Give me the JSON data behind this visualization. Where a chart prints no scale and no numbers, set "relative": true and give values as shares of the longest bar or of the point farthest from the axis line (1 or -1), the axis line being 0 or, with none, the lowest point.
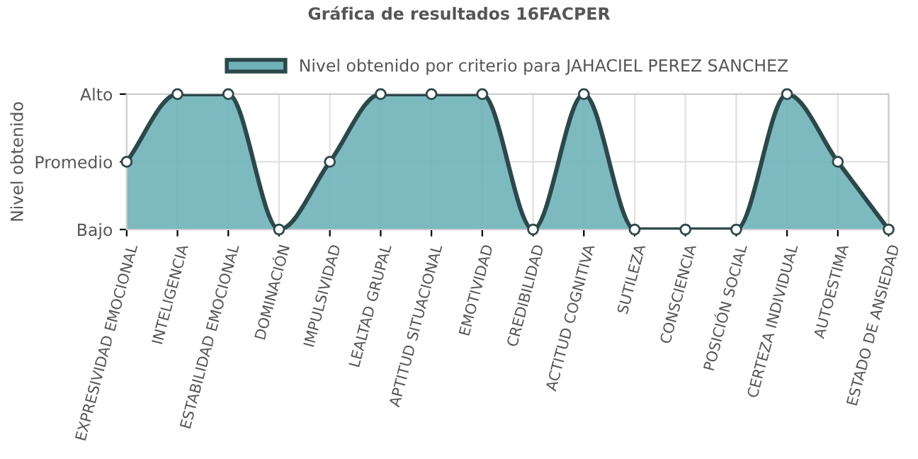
{
  "chart_data": {
    "type": "area",
    "title": "Gráfica de resultados 16FACPER",
    "ylabel": "Nivel obtenido",
    "categories": [
      "EXPRESIVIDAD EMOCIONAL",
      "INTELIGENCIA",
      "ESTABILIDAD EMOCIONAL",
      "DOMINACIÓN",
      "IMPULSIVIDAD",
      "LEALTAD GRUPAL",
      "APTITUD SITUACIONAL",
      "EMOTIVIDAD",
      "CREDIBILIDAD",
      "ACTITUD COGNITIVA",
      "SUTILEZA",
      "CONSCIENCIA",
      "POSICIÓN SOCIAL",
      "CERTEZA INDIVIDUAL",
      "AUTOESTIMA",
      "ESTADO DE ANSIEDAD"
    ],
    "series": [
      {
        "name": "Nivel obtenido por criterio para JAHACIEL PEREZ SANCHEZ",
        "color": "#6fb3b8",
        "values": [
          0.5,
          1,
          1,
          0,
          0.5,
          1,
          1,
          1,
          0,
          1,
          0,
          0,
          0,
          1,
          0.5,
          0
        ]
      }
    ],
    "relative": true,
    "y_categories": [
      "Alto",
      "Promedio",
      "Bajo"
    ],
    "grid": true,
    "legend": "top",
    "marker": "circle"
  }
}
